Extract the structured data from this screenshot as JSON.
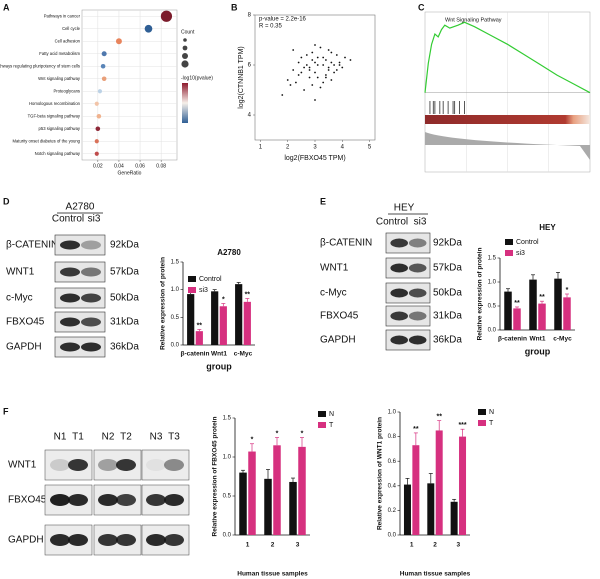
{
  "panel_labels": [
    "A",
    "B",
    "C",
    "D",
    "E",
    "F"
  ],
  "chart_data": [
    {
      "type": "dot",
      "categories": [
        "Pathways in cancer",
        "Cell cycle",
        "Cell adhesion",
        "Fatty acid metabolism",
        "Signaling pathways regulating pluripotency of stem cells",
        "Wnt signaling pathway",
        "Proteoglycans",
        "Homologous recombination",
        "TGF-beta signaling pathway",
        "p53 signaling pathway",
        "Maturity onset diabetes of the young",
        "Notch signaling pathway"
      ],
      "values": [
        0.085,
        0.068,
        0.04,
        0.026,
        0.025,
        0.026,
        0.022,
        0.019,
        0.021,
        0.02,
        0.019,
        0.019
      ],
      "counts": [
        20,
        12,
        8,
        6,
        5,
        5,
        4,
        4,
        5,
        5,
        4,
        4
      ],
      "colors": [
        "#7b1b2b",
        "#2f5f95",
        "#e8845c",
        "#4f78ad",
        "#5a85b8",
        "#e9a07a",
        "#bcd2e6",
        "#f2c4a8",
        "#f0b28e",
        "#8e2838",
        "#d9725a",
        "#c04c4c"
      ],
      "xlim": [
        0.005,
        0.095
      ],
      "xticks": [
        0.02,
        0.04,
        0.06,
        0.08
      ],
      "xlabel": "GeneRatio",
      "grid": true,
      "size_legend_title": "Count",
      "color_legend_title": "-log10(pvalue)"
    },
    {
      "type": "scatter",
      "annotations": [
        "p-value = 2.2e-16",
        "R = 0.35"
      ],
      "xlabel": "log2(FBXO45 TPM)",
      "ylabel": "log2(CTNNB1 TPM)",
      "color": "#111111",
      "x": [
        2.1,
        2.4,
        2.8,
        3.0,
        3.3,
        3.5,
        3.7,
        2.9,
        3.1,
        3.4,
        2.6,
        2.2,
        3.8,
        4.0,
        3.2,
        2.7,
        3.6,
        3.0,
        2.5,
        3.9,
        3.3,
        2.8,
        3.5,
        2.4,
        3.1,
        2.0,
        3.7,
        2.9,
        3.4,
        4.1,
        2.6,
        3.2,
        3.6,
        2.3,
        3.0,
        3.8,
        2.7,
        3.3,
        2.5,
        3.5,
        1.8,
        4.3,
        3.1,
        2.9,
        3.6,
        2.2,
        3.4,
        2.8,
        3.9,
        3.0
      ],
      "values": [
        5.2,
        5.6,
        5.9,
        6.1,
        6.3,
        5.8,
        6.0,
        6.5,
        5.5,
        6.2,
        5.0,
        5.8,
        6.4,
        5.9,
        6.7,
        6.0,
        5.4,
        5.7,
        6.3,
        6.1,
        5.3,
        5.5,
        6.6,
        6.1,
        6.0,
        5.4,
        5.7,
        6.2,
        5.6,
        6.3,
        5.9,
        5.1,
        6.5,
        5.3,
        6.8,
        5.8,
        6.4,
        6.0,
        5.7,
        5.9,
        4.8,
        6.2,
        6.3,
        5.2,
        6.1,
        6.6,
        5.5,
        5.8,
        6.0,
        4.6
      ],
      "xlim": [
        0.8,
        5.2
      ],
      "xticks": [
        1,
        2,
        3,
        4,
        5
      ],
      "ylim": [
        3,
        8
      ],
      "yticks": [
        4,
        6,
        8
      ]
    },
    {
      "type": "line",
      "title": "Wnt Signaling Pathway",
      "color": "#33cc33",
      "x": [
        0,
        2,
        4,
        6,
        8,
        10,
        12,
        15,
        20,
        24,
        30,
        40,
        50,
        60,
        70,
        80,
        90,
        100
      ],
      "values": [
        0,
        0.2,
        0.33,
        0.4,
        0.38,
        0.43,
        0.46,
        0.44,
        0.46,
        0.48,
        0.45,
        0.39,
        0.33,
        0.26,
        0.19,
        0.12,
        0.06,
        0
      ],
      "xlim": [
        0,
        100
      ],
      "ylim": [
        -0.05,
        0.55
      ]
    },
    {
      "type": "bar",
      "title": "A2780",
      "categories": [
        "β-catenin",
        "Wnt1",
        "c-Myc"
      ],
      "series": [
        {
          "name": "Control",
          "color": "#111111",
          "values": [
            0.92,
            0.97,
            1.1
          ],
          "errors": [
            0.06,
            0.03,
            0.03
          ]
        },
        {
          "name": "si3",
          "color": "#d6307f",
          "values": [
            0.25,
            0.7,
            0.78
          ],
          "errors": [
            0.03,
            0.05,
            0.06
          ]
        }
      ],
      "annotations": [
        "**",
        "*",
        "**"
      ],
      "ylabel": "Relative expression of protein",
      "xlabel": "group",
      "ylim": [
        0,
        1.5
      ],
      "yticks": [
        {
          "value": 0,
          "label": "0.0"
        },
        0.5,
        {
          "value": 1,
          "label": "1.0"
        },
        1.5
      ]
    },
    {
      "type": "bar",
      "title": "HEY",
      "categories": [
        "β-catenin",
        "Wnt1",
        "c-Myc"
      ],
      "series": [
        {
          "name": "Control",
          "color": "#111111",
          "values": [
            0.8,
            1.05,
            1.07
          ],
          "errors": [
            0.06,
            0.1,
            0.13
          ]
        },
        {
          "name": "si3",
          "color": "#d6307f",
          "values": [
            0.45,
            0.55,
            0.68
          ],
          "errors": [
            0.03,
            0.05,
            0.07
          ]
        }
      ],
      "annotations": [
        "**",
        "**",
        "*"
      ],
      "ylabel": "Relative expression of protein",
      "xlabel": "group",
      "ylim": [
        0,
        1.5
      ],
      "yticks": [
        {
          "value": 0,
          "label": "0.0"
        },
        0.5,
        {
          "value": 1,
          "label": "1.0"
        },
        1.5
      ]
    },
    {
      "type": "bar",
      "categories": [
        "1",
        "2",
        "3"
      ],
      "series": [
        {
          "name": "N",
          "color": "#111111",
          "values": [
            0.8,
            0.72,
            0.68
          ],
          "errors": [
            0.03,
            0.12,
            0.05
          ]
        },
        {
          "name": "T",
          "color": "#d6307f",
          "values": [
            1.07,
            1.15,
            1.13
          ],
          "errors": [
            0.1,
            0.1,
            0.12
          ]
        }
      ],
      "annotations": [
        "*",
        "*",
        "*"
      ],
      "ylabel": "Relative expression of FBXO45 protein",
      "xlabel": "Human tissue samples",
      "ylim": [
        0,
        1.5
      ],
      "yticks": [
        {
          "value": 0,
          "label": "0.0"
        },
        0.5,
        {
          "value": 1,
          "label": "1.0"
        },
        1.5
      ]
    },
    {
      "type": "bar",
      "categories": [
        "1",
        "2",
        "3"
      ],
      "series": [
        {
          "name": "N",
          "color": "#111111",
          "values": [
            0.41,
            0.42,
            0.27
          ],
          "errors": [
            0.05,
            0.08,
            0.02
          ]
        },
        {
          "name": "T",
          "color": "#d6307f",
          "values": [
            0.73,
            0.85,
            0.8
          ],
          "errors": [
            0.1,
            0.08,
            0.06
          ]
        }
      ],
      "annotations": [
        "**",
        "**",
        "***"
      ],
      "ylabel": "Relative expression of WNT1 protein",
      "xlabel": "Human tissue samples",
      "ylim": [
        0,
        1
      ],
      "yticks": [
        {
          "value": 0,
          "label": "0.0"
        },
        0.2,
        0.4,
        0.6,
        0.8,
        {
          "value": 1,
          "label": "1.0"
        }
      ]
    }
  ],
  "blots": [
    {
      "cell_line": "A2780",
      "lanes": [
        "Control",
        "si3"
      ],
      "proteins": [
        "β-CATENIN",
        "WNT1",
        "c-Myc",
        "FBXO45",
        "GAPDH"
      ],
      "sizes": [
        "92kDa",
        "57kDa",
        "50kDa",
        "31kDa",
        "36kDa"
      ]
    },
    {
      "cell_line": "HEY",
      "lanes": [
        "Control",
        "si3"
      ],
      "proteins": [
        "β-CATENIN",
        "WNT1",
        "c-Myc",
        "FBXO45",
        "GAPDH"
      ],
      "sizes": [
        "92kDa",
        "57kDa",
        "50kDa",
        "31kDa",
        "36kDa"
      ]
    },
    {
      "lanes": [
        "N1",
        "T1",
        "N2",
        "T2",
        "N3",
        "T3"
      ],
      "proteins": [
        "WNT1",
        "FBXO45",
        "GAPDH"
      ]
    }
  ]
}
